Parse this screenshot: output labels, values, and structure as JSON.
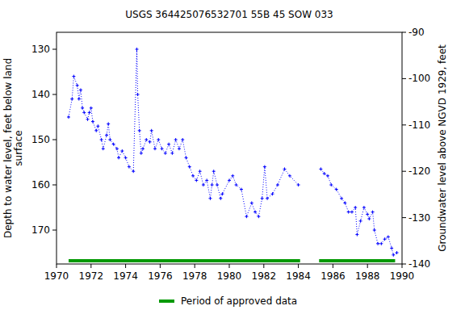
{
  "chart_data": {
    "type": "line",
    "title": "USGS 364425076532701 55B 45 SOW 033",
    "y_label": [
      "Depth to water level, feet below land",
      "surface"
    ],
    "y2_label": "Groundwater level above NGVD 1929, feet",
    "xlim": [
      1970,
      1990
    ],
    "xticks": [
      1970,
      1972,
      1974,
      1976,
      1978,
      1980,
      1982,
      1984,
      1986,
      1988,
      1990
    ],
    "ylim": [
      177.5,
      126.25
    ],
    "yticks": [
      130,
      140,
      150,
      160,
      170
    ],
    "y2lim": [
      -140,
      -90
    ],
    "y2ticks": [
      -140,
      -130,
      -120,
      -110,
      -100,
      -90
    ],
    "grid": false,
    "series": [
      {
        "name": "Depth to water level",
        "color": "#0000ff",
        "marker": "plus",
        "line_style": "dotted",
        "x": [
          1970.7,
          1970.9,
          1971.0,
          1971.2,
          1971.3,
          1971.4,
          1971.5,
          1971.6,
          1971.8,
          1971.9,
          1972.0,
          1972.1,
          1972.3,
          1972.4,
          1972.6,
          1972.7,
          1972.9,
          1973.0,
          1973.1,
          1973.3,
          1973.5,
          1973.6,
          1973.8,
          1974.0,
          1974.2,
          1974.45,
          1974.65,
          1974.7,
          1974.8,
          1974.9,
          1975.0,
          1975.2,
          1975.4,
          1975.5,
          1975.7,
          1975.9,
          1976.1,
          1976.3,
          1976.5,
          1976.7,
          1976.9,
          1977.1,
          1977.3,
          1977.5,
          1977.7,
          1977.9,
          1978.1,
          1978.3,
          1978.5,
          1978.7,
          1978.9,
          1979.0,
          1979.1,
          1979.3,
          1979.5,
          1979.6,
          1980.0,
          1980.2,
          1980.4,
          1980.7,
          1981.0,
          1981.3,
          1981.5,
          1981.7,
          1981.9,
          1982.05,
          1982.2,
          1982.5,
          1982.8,
          1983.2,
          1983.5,
          1984.0,
          null,
          1985.3,
          1985.5,
          1985.7,
          1985.9,
          1986.2,
          1986.5,
          1986.7,
          1986.9,
          1987.1,
          1987.3,
          1987.4,
          1987.6,
          1987.8,
          1988.0,
          1988.1,
          1988.3,
          1988.4,
          1988.6,
          1988.8,
          1989.0,
          1989.2,
          1989.4,
          1989.5,
          1989.7
        ],
        "values": [
          145,
          141,
          136,
          138,
          141,
          139,
          143,
          144,
          145.5,
          144,
          143,
          146,
          148,
          147,
          150,
          152,
          149,
          146.5,
          150,
          151,
          152,
          154,
          152.5,
          154,
          156,
          157,
          130,
          140,
          148,
          153,
          152,
          150,
          150.5,
          148,
          152,
          150,
          152,
          153,
          151,
          153,
          150,
          152,
          150,
          154,
          156,
          158,
          159,
          157,
          160,
          159,
          163,
          160,
          157,
          160,
          163,
          162,
          159,
          158,
          160,
          161,
          167,
          164,
          166,
          167,
          163,
          156,
          163,
          162,
          160,
          156.5,
          158,
          160,
          null,
          156.5,
          157.5,
          158,
          160,
          161,
          163,
          164,
          166,
          166,
          165,
          171,
          168,
          165,
          166.5,
          167.5,
          166,
          170,
          173,
          173,
          172,
          171.5,
          174,
          175.5,
          175
        ]
      }
    ],
    "approved": {
      "name": "Period of approved data",
      "color": "#009900",
      "periods": [
        [
          1970.7,
          1984.1
        ],
        [
          1985.2,
          1989.6
        ]
      ]
    }
  }
}
